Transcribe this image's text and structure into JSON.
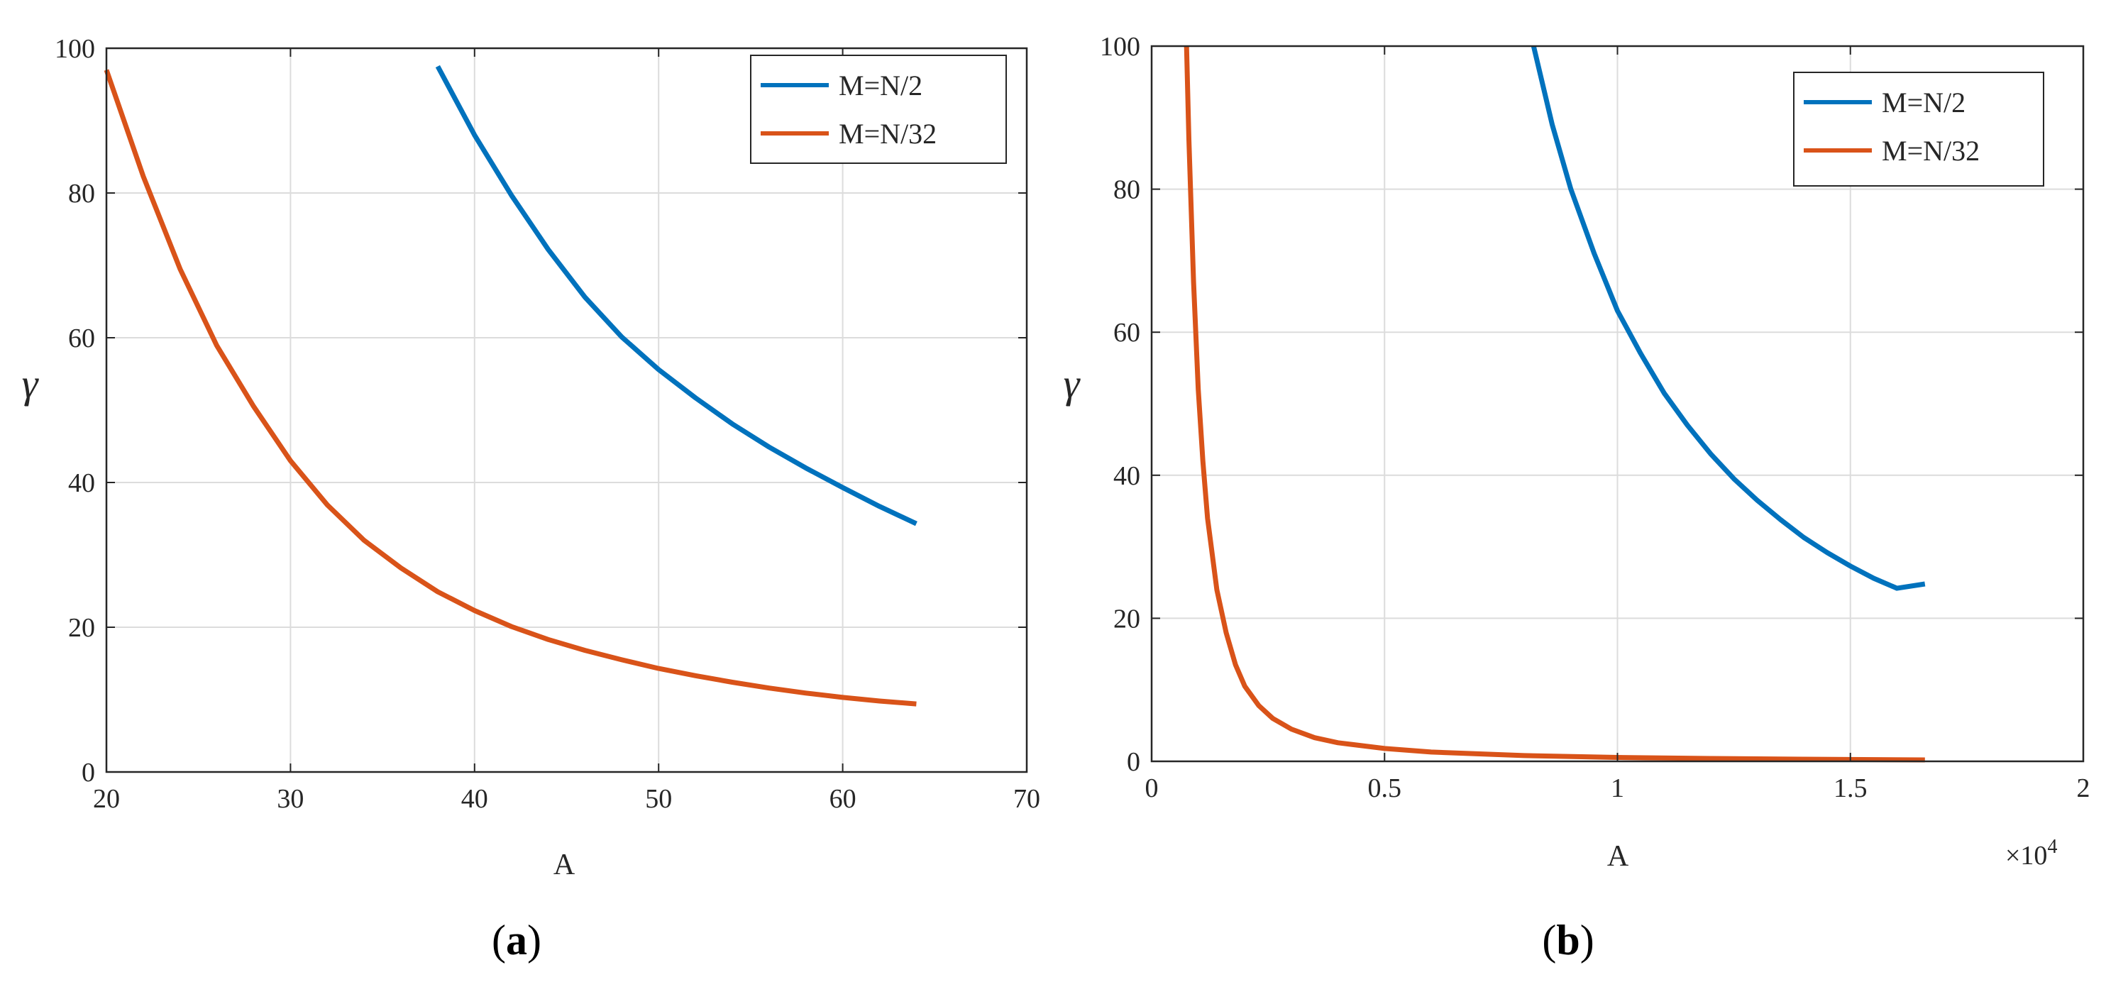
{
  "colors": {
    "blue": "#0072BD",
    "orange": "#D95319",
    "grid": "#DCDCDC",
    "axis": "#262626"
  },
  "chart_data": [
    {
      "type": "line",
      "panel": "a",
      "caption_open": "(",
      "caption_letter": "a",
      "caption_close": ")",
      "xlabel": "A",
      "ylabel": "γ",
      "xlim": [
        20,
        70
      ],
      "ylim": [
        0,
        100
      ],
      "xticks": [
        20,
        30,
        40,
        50,
        60,
        70
      ],
      "xtick_labels": [
        "20",
        "30",
        "40",
        "50",
        "60",
        "70"
      ],
      "yticks": [
        0,
        20,
        40,
        60,
        80,
        100
      ],
      "ytick_labels": [
        "0",
        "20",
        "40",
        "60",
        "80",
        "100"
      ],
      "grid": true,
      "legend_location": "top-right",
      "exponent_label": "",
      "series": [
        {
          "name": "M=N/2",
          "color": "#0072BD",
          "x": [
            38,
            40,
            42,
            44,
            46,
            48,
            50,
            52,
            54,
            56,
            58,
            60,
            62,
            64
          ],
          "y": [
            97.5,
            88,
            79.7,
            72.2,
            65.6,
            60.1,
            55.6,
            51.7,
            48.1,
            44.9,
            42.0,
            39.3,
            36.7,
            34.3
          ]
        },
        {
          "name": "M=N/32",
          "color": "#D95319",
          "x": [
            20,
            22,
            24,
            26,
            28,
            30,
            32,
            34,
            36,
            38,
            40,
            42,
            44,
            46,
            48,
            50,
            52,
            54,
            56,
            58,
            60,
            62,
            64
          ],
          "y": [
            97,
            82.3,
            69.5,
            58.9,
            50.5,
            43.0,
            36.9,
            32.0,
            28.2,
            24.9,
            22.3,
            20.1,
            18.3,
            16.8,
            15.5,
            14.3,
            13.3,
            12.4,
            11.6,
            10.9,
            10.3,
            9.8,
            9.4
          ]
        }
      ]
    },
    {
      "type": "line",
      "panel": "b",
      "caption_open": "(",
      "caption_letter": "b",
      "caption_close": ")",
      "xlabel": "A",
      "ylabel": "γ",
      "xlim": [
        0,
        2
      ],
      "ylim": [
        0,
        100
      ],
      "xticks": [
        0,
        0.5,
        1,
        1.5,
        2
      ],
      "xtick_labels": [
        "0",
        "0.5",
        "1",
        "1.5",
        "2"
      ],
      "yticks": [
        0,
        20,
        40,
        60,
        80,
        100
      ],
      "ytick_labels": [
        "0",
        "20",
        "40",
        "60",
        "80",
        "100"
      ],
      "grid": true,
      "legend_location": "top-right",
      "exponent_label": "×10",
      "exponent_power": "4",
      "x_scale_note": "x values in units of 10^4",
      "series": [
        {
          "name": "M=N/2",
          "color": "#0072BD",
          "x": [
            0.82,
            0.86,
            0.9,
            0.95,
            1.0,
            1.05,
            1.1,
            1.15,
            1.2,
            1.25,
            1.3,
            1.35,
            1.4,
            1.45,
            1.5,
            1.55,
            1.6,
            1.66
          ],
          "y": [
            100,
            89,
            80,
            71,
            63,
            57,
            51.5,
            47,
            43,
            39.5,
            36.5,
            33.8,
            31.3,
            29.2,
            27.3,
            25.6,
            24.2,
            24.8
          ]
        },
        {
          "name": "M=N/32",
          "color": "#D95319",
          "x": [
            0.075,
            0.08,
            0.09,
            0.1,
            0.11,
            0.12,
            0.14,
            0.16,
            0.18,
            0.2,
            0.23,
            0.26,
            0.3,
            0.35,
            0.4,
            0.5,
            0.6,
            0.8,
            1.0,
            1.2,
            1.4,
            1.66
          ],
          "y": [
            100,
            87,
            67,
            52,
            42,
            34,
            24,
            18,
            13.5,
            10.5,
            7.8,
            6.0,
            4.5,
            3.3,
            2.6,
            1.8,
            1.3,
            0.8,
            0.55,
            0.4,
            0.3,
            0.2
          ]
        }
      ]
    }
  ]
}
